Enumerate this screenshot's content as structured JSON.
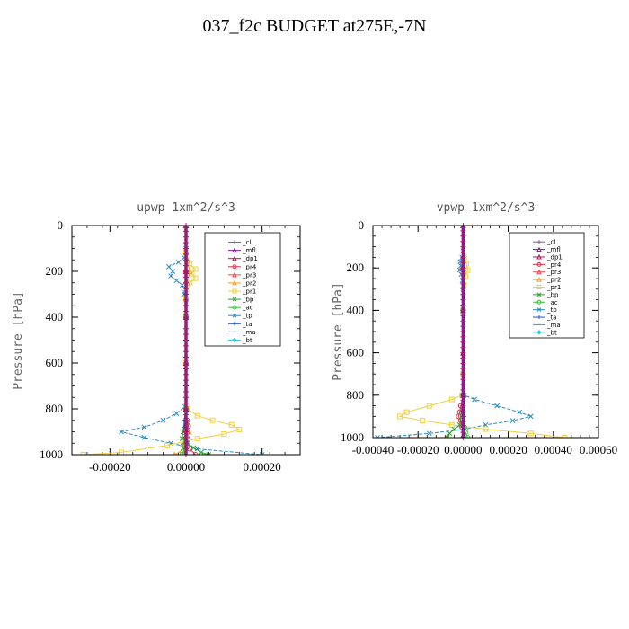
{
  "title": "037_f2c  BUDGET at275E,-7N",
  "legend_entries": [
    {
      "name": "_cl",
      "color": "#8e55a8",
      "marker": "plus"
    },
    {
      "name": "_mfl",
      "color": "#7a1fa2",
      "marker": "tri"
    },
    {
      "name": "_dp1",
      "color": "#b0185c",
      "marker": "tri"
    },
    {
      "name": "_pr4",
      "color": "#e0304a",
      "marker": "circle"
    },
    {
      "name": "_pr3",
      "color": "#f04848",
      "marker": "tri"
    },
    {
      "name": "_pr2",
      "color": "#f2a030",
      "marker": "tri"
    },
    {
      "name": "_pr1",
      "color": "#f2d040",
      "marker": "square"
    },
    {
      "name": "_bp",
      "color": "#2ca02c",
      "marker": "x"
    },
    {
      "name": "_ac",
      "color": "#3cc03c",
      "marker": "circle"
    },
    {
      "name": "_tp",
      "color": "#2b8cc4",
      "marker": "x"
    },
    {
      "name": "_ta",
      "color": "#2255cc",
      "marker": "plus"
    },
    {
      "name": "_ma",
      "color": "#30a0d8",
      "marker": "dash"
    },
    {
      "name": "_bt",
      "color": "#20d0e0",
      "marker": "diamond"
    }
  ],
  "chart_data": [
    {
      "type": "line",
      "title": "upwp   1xm^2/s^3",
      "ylabel": "Pressure [hPa]",
      "xlabel": "",
      "xlim": [
        -0.0003,
        0.0003
      ],
      "ylim": [
        1000,
        0
      ],
      "xticks": [
        -0.0002,
        0.0,
        0.0002
      ],
      "xtick_labels": [
        "-0.00020",
        "0.00000",
        "0.00020"
      ],
      "yticks": [
        0,
        200,
        400,
        600,
        800,
        1000
      ],
      "ytick_labels": [
        "0",
        "200",
        "400",
        "600",
        "800",
        "1000"
      ],
      "series": [
        {
          "name": "_tp",
          "y": [
            0,
            100,
            140,
            160,
            180,
            200,
            220,
            240,
            260,
            300,
            340,
            400,
            600,
            790,
            820,
            850,
            880,
            900,
            925,
            950,
            975,
            1000
          ],
          "x": [
            0,
            0,
            -5e-06,
            -2e-05,
            -4.5e-05,
            -3.5e-05,
            -4e-05,
            -2.5e-05,
            -1e-05,
            -5e-06,
            0,
            0,
            0,
            -3e-06,
            -2.5e-05,
            -6e-05,
            -0.00011,
            -0.00017,
            -0.00011,
            -4e-05,
            3e-05,
            0.0002
          ]
        },
        {
          "name": "_pr1",
          "y": [
            0,
            120,
            150,
            170,
            190,
            210,
            230,
            250,
            280,
            320,
            400,
            600,
            800,
            830,
            850,
            870,
            890,
            910,
            930,
            960,
            990,
            1000
          ],
          "x": [
            0,
            0,
            5e-06,
            1e-05,
            2.5e-05,
            1.5e-05,
            2.5e-05,
            1e-05,
            5e-06,
            0,
            0,
            0,
            3e-06,
            3e-05,
            7e-05,
            0.00012,
            0.00014,
            0.0001,
            3e-05,
            -5e-05,
            -0.00017,
            -0.00027
          ]
        },
        {
          "name": "_pr2",
          "y": [
            0,
            150,
            200,
            250,
            400,
            800,
            860,
            900,
            950,
            980,
            1000
          ],
          "x": [
            0,
            4e-06,
            1e-05,
            4e-06,
            0,
            0,
            4e-06,
            8e-06,
            -4e-06,
            -1e-05,
            -3e-05
          ]
        },
        {
          "name": "_pr4",
          "y": [
            0,
            200,
            400,
            800,
            850,
            875,
            900,
            925,
            950,
            975,
            1000
          ],
          "x": [
            0,
            0,
            0,
            0,
            3e-06,
            6e-06,
            4e-06,
            2e-06,
            5e-06,
            1e-05,
            2.5e-05
          ]
        },
        {
          "name": "_bp",
          "y": [
            0,
            400,
            800,
            900,
            930,
            950,
            970,
            990,
            1000
          ],
          "x": [
            0,
            0,
            0,
            -8e-06,
            -1e-05,
            3e-06,
            2e-05,
            4e-05,
            6e-05
          ]
        },
        {
          "name": "_ac",
          "y": [
            0,
            400,
            800,
            920,
            960,
            980,
            1000
          ],
          "x": [
            0,
            0,
            0,
            -3e-06,
            -8e-06,
            -6e-06,
            -1e-05
          ]
        },
        {
          "name": "_ta",
          "y": [
            0,
            400,
            800,
            850,
            880,
            900,
            950,
            1000
          ],
          "x": [
            0,
            0,
            0,
            -5e-06,
            -5e-06,
            0,
            3e-06,
            0
          ]
        },
        {
          "name": "_dp1",
          "y": [
            0,
            200,
            400,
            600,
            800,
            1000
          ],
          "x": [
            0,
            0,
            0,
            0,
            0,
            0
          ]
        }
      ]
    },
    {
      "type": "line",
      "title": "vpwp   1xm^2/s^3",
      "ylabel": "Pressure [hPa]",
      "xlabel": "",
      "xlim": [
        -0.0004,
        0.0006
      ],
      "ylim": [
        1000,
        0
      ],
      "xticks": [
        -0.0004,
        -0.0002,
        0.0,
        0.0002,
        0.0004,
        0.0006
      ],
      "xtick_labels": [
        "-0.00040",
        "-0.00020",
        "0.00000",
        "0.00020",
        "0.00040",
        "0.00060"
      ],
      "yticks": [
        0,
        200,
        400,
        600,
        800,
        1000
      ],
      "ytick_labels": [
        "0",
        "200",
        "400",
        "600",
        "800",
        "1000"
      ],
      "series": [
        {
          "name": "_tp",
          "y": [
            0,
            120,
            150,
            170,
            190,
            210,
            230,
            260,
            300,
            400,
            700,
            800,
            820,
            850,
            880,
            900,
            920,
            940,
            960,
            980,
            1000
          ],
          "x": [
            0,
            0,
            -5e-06,
            -1.2e-05,
            -1e-05,
            -1.5e-05,
            -8e-06,
            -4e-06,
            0,
            0,
            0,
            5e-06,
            5e-05,
            0.00015,
            0.00025,
            0.0003,
            0.00022,
            0.0001,
            1e-05,
            -0.00015,
            -0.00038
          ]
        },
        {
          "name": "_pr1",
          "y": [
            0,
            150,
            180,
            210,
            240,
            280,
            400,
            700,
            800,
            820,
            850,
            880,
            900,
            920,
            940,
            960,
            980,
            1000
          ],
          "x": [
            0,
            5e-06,
            1.5e-05,
            2e-05,
            1e-05,
            4e-06,
            0,
            0,
            -5e-06,
            -5e-05,
            -0.00015,
            -0.00025,
            -0.00028,
            -0.00018,
            -5e-05,
            0.0001,
            0.0003,
            0.00045
          ]
        },
        {
          "name": "_pr4",
          "y": [
            0,
            200,
            400,
            800,
            850,
            880,
            900,
            920,
            950,
            1000
          ],
          "x": [
            0,
            0,
            0,
            0,
            -1e-05,
            -1.5e-05,
            -2e-05,
            -1e-05,
            -5e-06,
            0
          ]
        },
        {
          "name": "_bp",
          "y": [
            0,
            400,
            800,
            940,
            960,
            980,
            1000
          ],
          "x": [
            0,
            0,
            0,
            -1.5e-05,
            -4e-05,
            -6e-05,
            -7e-05
          ]
        },
        {
          "name": "_ac",
          "y": [
            0,
            400,
            800,
            950,
            975,
            1000
          ],
          "x": [
            0,
            0,
            0,
            5e-06,
            1e-05,
            2e-05
          ]
        },
        {
          "name": "_ta",
          "y": [
            0,
            400,
            800,
            860,
            900,
            950,
            1000
          ],
          "x": [
            0,
            0,
            0,
            -4e-06,
            4e-06,
            0,
            0
          ]
        },
        {
          "name": "_dp1",
          "y": [
            0,
            200,
            400,
            600,
            800,
            1000
          ],
          "x": [
            0,
            0,
            0,
            0,
            0,
            0
          ]
        }
      ]
    }
  ]
}
